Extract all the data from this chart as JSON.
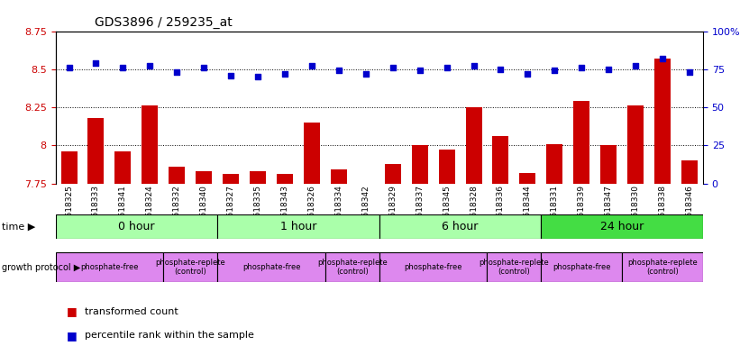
{
  "title": "GDS3896 / 259235_at",
  "samples": [
    "GSM618325",
    "GSM618333",
    "GSM618341",
    "GSM618324",
    "GSM618332",
    "GSM618340",
    "GSM618327",
    "GSM618335",
    "GSM618343",
    "GSM618326",
    "GSM618334",
    "GSM618342",
    "GSM618329",
    "GSM618337",
    "GSM618345",
    "GSM618328",
    "GSM618336",
    "GSM618344",
    "GSM618331",
    "GSM618339",
    "GSM618347",
    "GSM618330",
    "GSM618338",
    "GSM618346"
  ],
  "bar_values": [
    7.96,
    8.18,
    7.96,
    8.26,
    7.86,
    7.83,
    7.81,
    7.83,
    7.81,
    8.15,
    7.84,
    7.75,
    7.88,
    8.0,
    7.97,
    8.25,
    8.06,
    7.82,
    8.01,
    8.29,
    8.0,
    8.26,
    8.57,
    7.9
  ],
  "blue_values": [
    76,
    79,
    76,
    77,
    73,
    76,
    71,
    70,
    72,
    77,
    74,
    72,
    76,
    74,
    76,
    77,
    75,
    72,
    74,
    76,
    75,
    77,
    82,
    73
  ],
  "ymin": 7.75,
  "ymax": 8.75,
  "yticks_left": [
    7.75,
    8.0,
    8.25,
    8.5,
    8.75
  ],
  "yticks_left_labels": [
    "7.75",
    "8",
    "8.25",
    "8.5",
    "8.75"
  ],
  "yticks_right": [
    0,
    25,
    50,
    75,
    100
  ],
  "yticks_right_labels": [
    "0",
    "25",
    "50",
    "75",
    "100%"
  ],
  "bar_color": "#cc0000",
  "dot_color": "#0000cc",
  "bg_color": "#ffffff",
  "axis_label_color_left": "#cc0000",
  "axis_label_color_right": "#0000cc",
  "time_groups": [
    {
      "label": "0 hour",
      "start": 0,
      "end": 6,
      "color": "#aaffaa"
    },
    {
      "label": "1 hour",
      "start": 6,
      "end": 12,
      "color": "#aaffaa"
    },
    {
      "label": "6 hour",
      "start": 12,
      "end": 18,
      "color": "#aaffaa"
    },
    {
      "label": "24 hour",
      "start": 18,
      "end": 24,
      "color": "#44dd44"
    }
  ],
  "protocol_groups": [
    {
      "label": "phosphate-free",
      "start": 0,
      "end": 4,
      "color": "#dd88ee"
    },
    {
      "label": "phosphate-replete\n(control)",
      "start": 4,
      "end": 6,
      "color": "#dd88ee"
    },
    {
      "label": "phosphate-free",
      "start": 6,
      "end": 10,
      "color": "#dd88ee"
    },
    {
      "label": "phosphate-replete\n(control)",
      "start": 10,
      "end": 12,
      "color": "#dd88ee"
    },
    {
      "label": "phosphate-free",
      "start": 12,
      "end": 16,
      "color": "#dd88ee"
    },
    {
      "label": "phosphate-replete\n(control)",
      "start": 16,
      "end": 18,
      "color": "#dd88ee"
    },
    {
      "label": "phosphate-free",
      "start": 18,
      "end": 21,
      "color": "#dd88ee"
    },
    {
      "label": "phosphate-replete\n(control)",
      "start": 21,
      "end": 24,
      "color": "#dd88ee"
    }
  ]
}
